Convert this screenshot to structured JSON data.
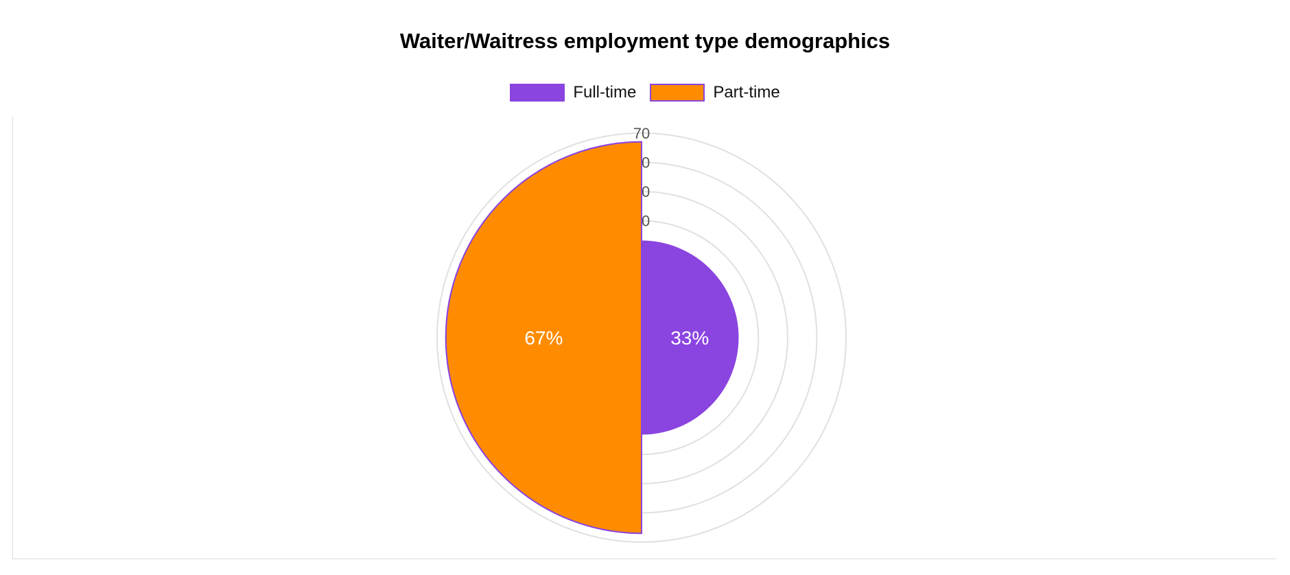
{
  "chart_data": {
    "type": "polarArea",
    "title": "Waiter/Waitress employment type demographics",
    "categories": [
      "Full-time",
      "Part-time"
    ],
    "values": [
      33,
      67
    ],
    "value_labels": [
      "33%",
      "67%"
    ],
    "colors": [
      "#8a44e0",
      "#ff8c00"
    ],
    "border_color": "#8a44e0",
    "r_axis": {
      "min": 0,
      "max": 70,
      "ticks": [
        40,
        50,
        60,
        70
      ]
    },
    "legend_position": "top",
    "grid": true
  }
}
